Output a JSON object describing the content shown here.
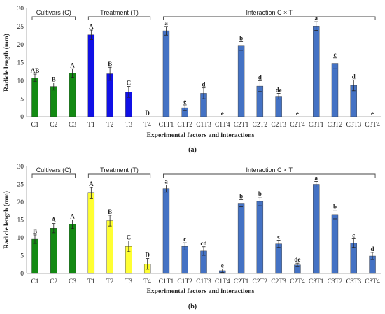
{
  "chart_data": [
    {
      "type": "bar",
      "panel_label": "(a)",
      "ylabel": "Radicle length (mm)",
      "xlabel": "Experimental factors and interactions",
      "ylim": [
        0,
        30
      ],
      "yticks": [
        "0",
        "5",
        "10",
        "15",
        "20",
        "25",
        "30"
      ],
      "groups": [
        {
          "label": "Cultivars (C)",
          "start": 0,
          "end": 2
        },
        {
          "label": "Treatment (T)",
          "start": 3,
          "end": 6
        },
        {
          "label": "Interaction C × T",
          "start": 7,
          "end": 18
        }
      ],
      "categories": [
        "C1",
        "C2",
        "C3",
        "T1",
        "T2",
        "T3",
        "T4",
        "C1T1",
        "C1T2",
        "C1T3",
        "C1T4",
        "C2T1",
        "C2T2",
        "C2T3",
        "C2T4",
        "C3T1",
        "C3T2",
        "C3T3",
        "C3T4"
      ],
      "values": [
        10.8,
        8.4,
        12.1,
        22.7,
        11.9,
        6.9,
        0,
        23.8,
        2.5,
        6.5,
        0,
        19.6,
        8.5,
        5.7,
        0,
        25.1,
        14.8,
        8.7,
        0
      ],
      "errors": [
        1.0,
        1.0,
        1.2,
        1.3,
        1.8,
        1.5,
        0,
        1.2,
        0.8,
        1.5,
        0,
        1.2,
        1.5,
        0.8,
        0,
        1.2,
        1.5,
        1.5,
        0
      ],
      "letters": [
        "AB",
        "B",
        "A",
        "A",
        "B",
        "C",
        "D",
        "a",
        "e",
        "d",
        "e",
        "b",
        "d",
        "de",
        "e",
        "a",
        "c",
        "d",
        "e"
      ],
      "colors": [
        "#138a13",
        "#138a13",
        "#138a13",
        "#1010e6",
        "#1010e6",
        "#1010e6",
        "#1010e6",
        "#4472c4",
        "#4472c4",
        "#4472c4",
        "#4472c4",
        "#4472c4",
        "#4472c4",
        "#4472c4",
        "#4472c4",
        "#4472c4",
        "#4472c4",
        "#4472c4",
        "#4472c4"
      ]
    },
    {
      "type": "bar",
      "panel_label": "(b)",
      "ylabel": "Radicle length (mm)",
      "xlabel": "Experimental factors and interactions",
      "ylim": [
        0,
        30
      ],
      "yticks": [
        "0",
        "5",
        "10",
        "15",
        "20",
        "25",
        "30"
      ],
      "groups": [
        {
          "label": "Cultivars (C)",
          "start": 0,
          "end": 2
        },
        {
          "label": "Treatment (T)",
          "start": 3,
          "end": 6
        },
        {
          "label": "Interaction C × T",
          "start": 7,
          "end": 18
        }
      ],
      "categories": [
        "C1",
        "C2",
        "C3",
        "T1",
        "T2",
        "T3",
        "T4",
        "C1T1",
        "C1T2",
        "C1T3",
        "C1T4",
        "C2T1",
        "C2T2",
        "C2T3",
        "C2T4",
        "C3T1",
        "C3T2",
        "C3T3",
        "C3T4"
      ],
      "values": [
        9.6,
        12.7,
        13.8,
        22.6,
        14.8,
        7.6,
        2.7,
        23.8,
        7.6,
        6.3,
        0.8,
        19.7,
        20.2,
        8.3,
        2.4,
        25.0,
        16.5,
        8.5,
        4.9
      ],
      "errors": [
        1.2,
        1.3,
        1.2,
        1.5,
        1.5,
        1.5,
        1.5,
        1.0,
        1.0,
        1.2,
        0.5,
        1.0,
        1.2,
        1.0,
        0.5,
        0.8,
        1.2,
        1.2,
        1.0
      ],
      "letters": [
        "B",
        "A",
        "A",
        "A",
        "B",
        "C",
        "D",
        "a",
        "c",
        "cd",
        "e",
        "b",
        "b",
        "c",
        "de",
        "a",
        "b",
        "c",
        "d"
      ],
      "colors": [
        "#138a13",
        "#138a13",
        "#138a13",
        "#ffff33",
        "#ffff33",
        "#ffff33",
        "#ffff33",
        "#4472c4",
        "#4472c4",
        "#4472c4",
        "#4472c4",
        "#4472c4",
        "#4472c4",
        "#4472c4",
        "#4472c4",
        "#4472c4",
        "#4472c4",
        "#4472c4",
        "#4472c4"
      ]
    }
  ]
}
